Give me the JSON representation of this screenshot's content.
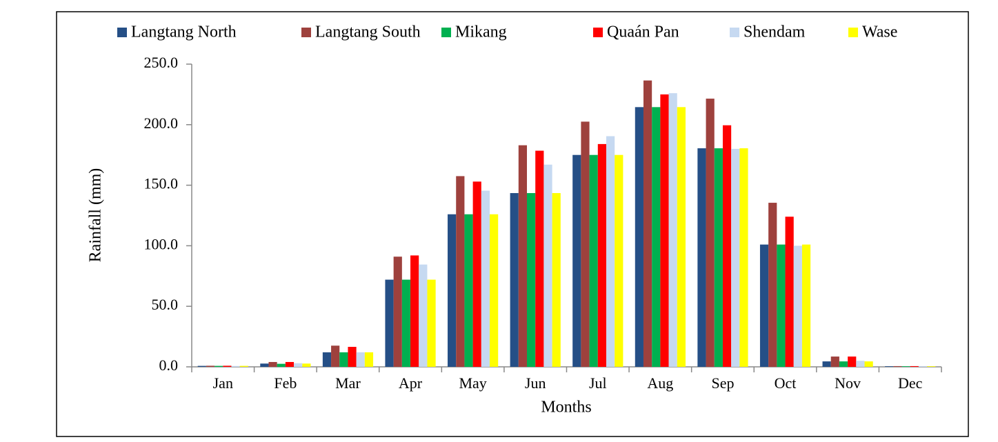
{
  "chart_data": {
    "type": "bar",
    "y_label": "Rainfall (mm)",
    "x_label": "Months",
    "categories": [
      "Jan",
      "Feb",
      "Mar",
      "Apr",
      "May",
      "Jun",
      "Jul",
      "Aug",
      "Sep",
      "Oct",
      "Nov",
      "Dec"
    ],
    "series": [
      {
        "name": "Langtang North",
        "color": "#254f86",
        "values": [
          0.8,
          2.7,
          12,
          72,
          126,
          143.5,
          175,
          214.5,
          180.5,
          101,
          4.5,
          0.5
        ]
      },
      {
        "name": "Langtang South",
        "color": "#9e413d",
        "values": [
          0.9,
          4,
          17.5,
          91,
          157.5,
          183,
          202.5,
          236.5,
          221.5,
          135.5,
          8.5,
          0.6
        ]
      },
      {
        "name": "Mikang",
        "color": "#00b050",
        "values": [
          0.8,
          2.5,
          12,
          72,
          126,
          143.5,
          175,
          214.5,
          180.5,
          101,
          4.5,
          0.5
        ]
      },
      {
        "name": "Quaán Pan",
        "color": "#ff0000",
        "values": [
          0.9,
          4,
          16.5,
          92,
          153,
          178.5,
          184,
          225,
          199.5,
          124,
          8.5,
          0.6
        ]
      },
      {
        "name": "Shendam",
        "color": "#c6d9f1",
        "values": [
          0.7,
          3,
          12,
          84.5,
          145.5,
          167,
          190.5,
          226,
          180,
          100,
          5,
          0.5
        ]
      },
      {
        "name": "Wase",
        "color": "#ffff00",
        "values": [
          0.8,
          2.7,
          12,
          72,
          126,
          143.5,
          175,
          214.5,
          180.5,
          101,
          4.5,
          0.5
        ]
      }
    ],
    "ylim": [
      0,
      250
    ],
    "yticks": [
      {
        "value": 0,
        "label": "0.0"
      },
      {
        "value": 50,
        "label": "50.0"
      },
      {
        "value": 100,
        "label": "100.0"
      },
      {
        "value": 150,
        "label": "150.0"
      },
      {
        "value": 200,
        "label": "200.0"
      },
      {
        "value": 250,
        "label": "250.0"
      }
    ],
    "legend": "top"
  }
}
